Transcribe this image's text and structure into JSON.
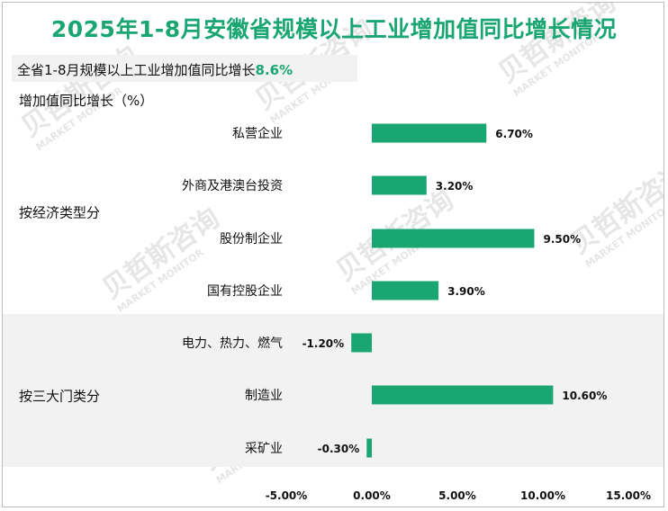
{
  "chart_data": {
    "type": "bar",
    "orientation": "horizontal",
    "title": "2025年1-8月安徽省规模以上工业增加值同比增长情况",
    "subtitle": "全省1-8月规模以上工业增加值同比增长",
    "subtitle_value": "8.6%",
    "ylabel": "增加值同比增长（%）",
    "xlim": [
      -5,
      15
    ],
    "x_ticks": [
      "-5.00%",
      "0.00%",
      "5.00%",
      "10.00%",
      "15.00%"
    ],
    "groups": [
      {
        "name": "按经济类型分",
        "categories": [
          "私营企业",
          "外商及港澳台投资",
          "股份制企业",
          "国有控股企业"
        ],
        "values": [
          6.7,
          3.2,
          9.5,
          3.9
        ],
        "labels": [
          "6.70%",
          "3.20%",
          "9.50%",
          "3.90%"
        ]
      },
      {
        "name": "按三大门类分",
        "categories": [
          "电力、热力、燃气",
          "制造业",
          "采矿业"
        ],
        "values": [
          -1.2,
          10.6,
          -0.3
        ],
        "labels": [
          "-1.20%",
          "10.60%",
          "-0.30%"
        ]
      }
    ],
    "bar_color": "#1aa673",
    "title_color": "#1aa673",
    "watermark": "贝哲斯咨询 MARKET MONITOR"
  }
}
